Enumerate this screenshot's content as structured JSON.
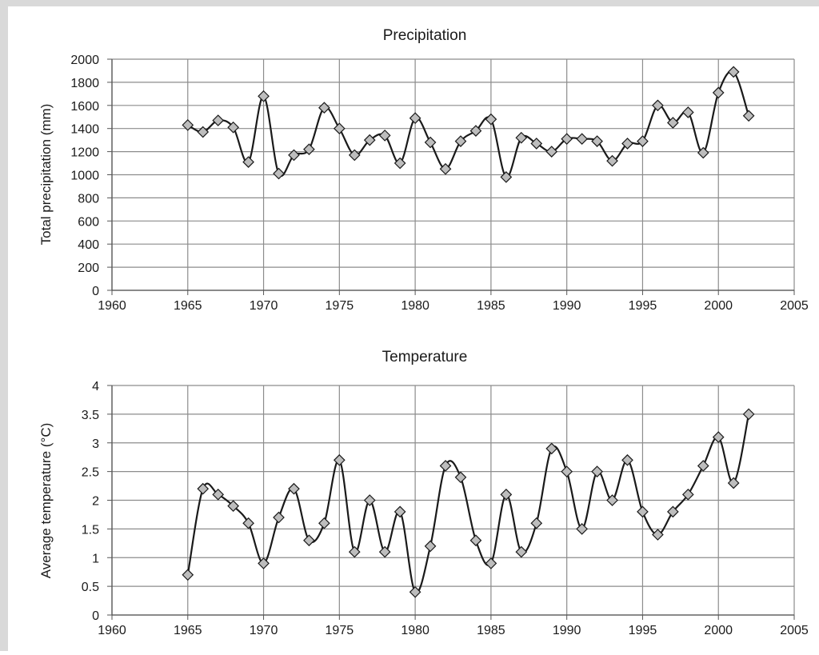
{
  "chart_data": [
    {
      "type": "line",
      "title": "Precipitation",
      "xlabel": "",
      "ylabel": "Total precipitation (mm)",
      "xlim": [
        1960,
        2005
      ],
      "ylim": [
        0,
        2000
      ],
      "xticks": [
        "1960",
        "1965",
        "1970",
        "1975",
        "1980",
        "1985",
        "1990",
        "1995",
        "2000",
        "2005"
      ],
      "yticks": [
        "0",
        "200",
        "400",
        "600",
        "800",
        "1000",
        "1200",
        "1400",
        "1600",
        "1800",
        "2000"
      ],
      "grid": true,
      "line_color": "#1a1a1a",
      "marker": "diamond",
      "marker_color": "#bdbdbd",
      "x": [
        1965,
        1966,
        1967,
        1968,
        1969,
        1970,
        1971,
        1972,
        1973,
        1974,
        1975,
        1976,
        1977,
        1978,
        1979,
        1980,
        1981,
        1982,
        1983,
        1984,
        1985,
        1986,
        1987,
        1988,
        1989,
        1990,
        1991,
        1992,
        1993,
        1994,
        1995,
        1996,
        1997,
        1998,
        1999,
        2000,
        2001,
        2002
      ],
      "values": [
        1430,
        1370,
        1470,
        1410,
        1110,
        1680,
        1010,
        1170,
        1220,
        1580,
        1400,
        1170,
        1300,
        1340,
        1100,
        1490,
        1280,
        1050,
        1290,
        1380,
        1480,
        980,
        1320,
        1270,
        1200,
        1310,
        1310,
        1290,
        1120,
        1270,
        1290,
        1600,
        1450,
        1540,
        1190,
        1710,
        1890,
        1510
      ]
    },
    {
      "type": "line",
      "title": "Temperature",
      "xlabel": "",
      "ylabel": "Average temperature (°C)",
      "xlim": [
        1960,
        2005
      ],
      "ylim": [
        0,
        4
      ],
      "xticks": [
        "1960",
        "1965",
        "1970",
        "1975",
        "1980",
        "1985",
        "1990",
        "1995",
        "2000",
        "2005"
      ],
      "yticks": [
        "0",
        "0.5",
        "1",
        "1.5",
        "2",
        "2.5",
        "3",
        "3.5",
        "4"
      ],
      "grid": true,
      "line_color": "#1a1a1a",
      "marker": "diamond",
      "marker_color": "#bdbdbd",
      "x": [
        1965,
        1966,
        1967,
        1968,
        1969,
        1970,
        1971,
        1972,
        1973,
        1974,
        1975,
        1976,
        1977,
        1978,
        1979,
        1980,
        1981,
        1982,
        1983,
        1984,
        1985,
        1986,
        1987,
        1988,
        1989,
        1990,
        1991,
        1992,
        1993,
        1994,
        1995,
        1996,
        1997,
        1998,
        1999,
        2000,
        2001,
        2002
      ],
      "values": [
        0.7,
        2.2,
        2.1,
        1.9,
        1.6,
        0.9,
        1.7,
        2.2,
        1.3,
        1.6,
        2.7,
        1.1,
        2.0,
        1.1,
        1.8,
        0.4,
        1.2,
        2.6,
        2.4,
        1.3,
        0.9,
        2.1,
        1.1,
        1.6,
        2.9,
        2.5,
        1.5,
        2.5,
        2.0,
        2.7,
        1.8,
        1.4,
        1.8,
        2.1,
        2.6,
        3.1,
        2.3,
        3.5
      ]
    }
  ]
}
